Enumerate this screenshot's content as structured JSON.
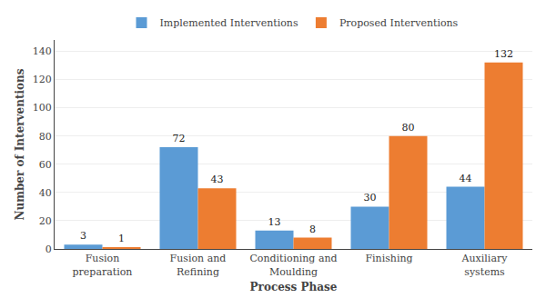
{
  "chart_data": {
    "type": "bar",
    "categories": [
      "Fusion\npreparation",
      "Fusion and\nRefining",
      "Conditioning and\nMoulding",
      "Finishing",
      "Auxiliary\nsystems"
    ],
    "series": [
      {
        "name": "Implemented Interventions",
        "color": "#5B9BD5",
        "values": [
          3,
          72,
          13,
          30,
          44
        ]
      },
      {
        "name": "Proposed Interventions",
        "color": "#ED7D31",
        "values": [
          1,
          43,
          8,
          80,
          132
        ]
      }
    ],
    "xlabel": "Process Phase",
    "ylabel": "Number of Interventions",
    "ylim": [
      0,
      148
    ],
    "yticks": [
      0,
      20,
      40,
      60,
      80,
      100,
      120,
      140
    ],
    "grid": true,
    "legend": "top",
    "data_labels": true
  }
}
